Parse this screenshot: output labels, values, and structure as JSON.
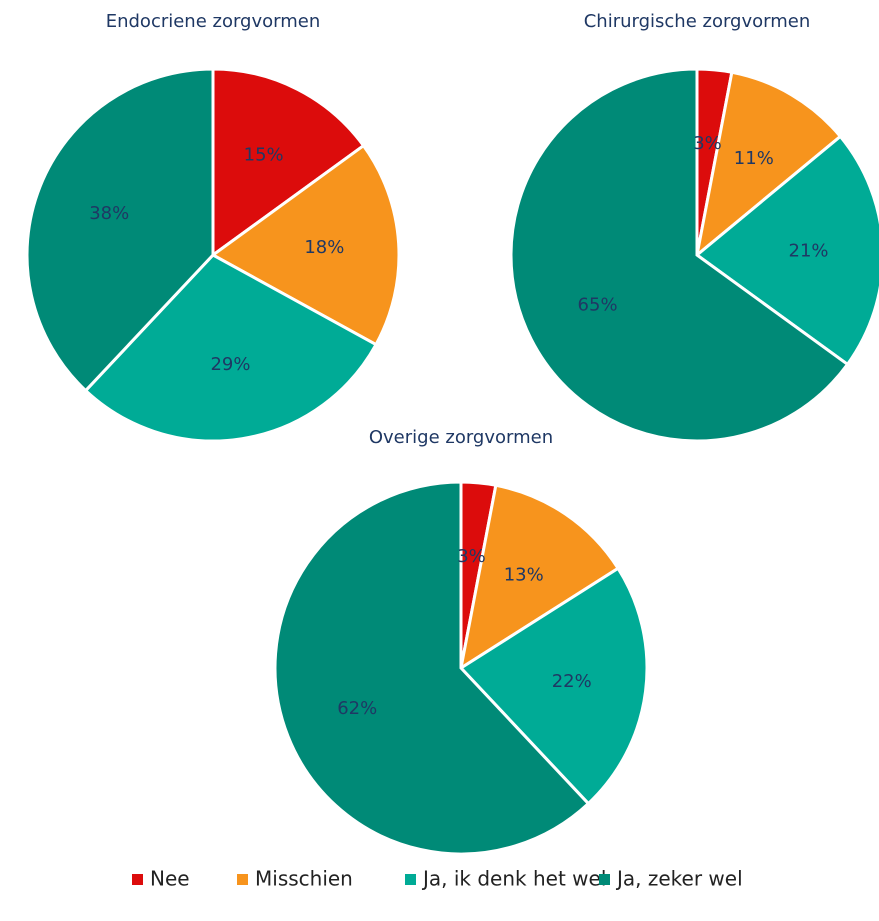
{
  "chart_data": [
    {
      "type": "pie",
      "title": "Endocriene zorgvormen",
      "categories": [
        "Nee",
        "Misschien",
        "Ja, ik denk het wel",
        "Ja, zeker wel"
      ],
      "values": [
        15,
        18,
        29,
        38
      ],
      "value_labels": [
        "15%",
        "18%",
        "29%",
        "38%"
      ],
      "colors": [
        "#dc0c0c",
        "#f7941d",
        "#00ab96",
        "#008a77"
      ],
      "legend": "bottom"
    },
    {
      "type": "pie",
      "title": "Chirurgische zorgvormen",
      "categories": [
        "Nee",
        "Misschien",
        "Ja, ik denk het wel",
        "Ja, zeker wel"
      ],
      "values": [
        3,
        11,
        21,
        65
      ],
      "value_labels": [
        "3%",
        "11%",
        "21%",
        "65%"
      ],
      "colors": [
        "#dc0c0c",
        "#f7941d",
        "#00ab96",
        "#008a77"
      ],
      "legend": "bottom"
    },
    {
      "type": "pie",
      "title": "Overige zorgvormen",
      "categories": [
        "Nee",
        "Misschien",
        "Ja, ik denk het wel",
        "Ja, zeker wel"
      ],
      "values": [
        3,
        13,
        22,
        62
      ],
      "value_labels": [
        "3%",
        "13%",
        "22%",
        "62%"
      ],
      "colors": [
        "#dc0c0c",
        "#f7941d",
        "#00ab96",
        "#008a77"
      ],
      "legend": "bottom"
    }
  ]
}
